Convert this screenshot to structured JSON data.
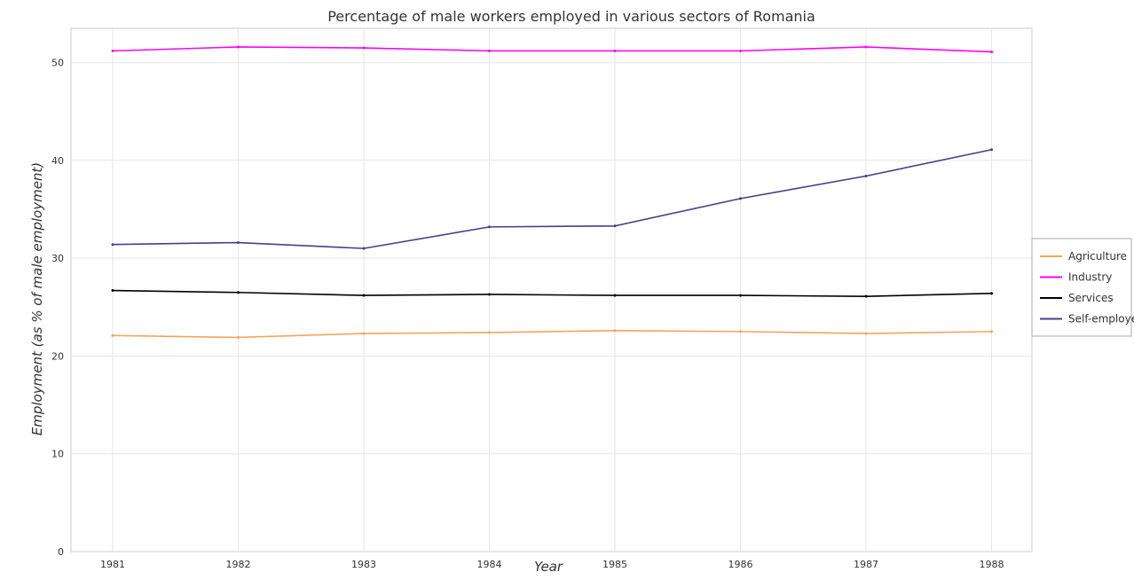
{
  "chart_data": {
    "type": "line",
    "title": "Percentage of male workers employed in various sectors of Romania",
    "xlabel": "Year",
    "ylabel": "Employment (as % of male employment)",
    "categories": [
      "1981",
      "1982",
      "1983",
      "1984",
      "1985",
      "1986",
      "1987",
      "1988"
    ],
    "ylim": [
      0,
      53.5
    ],
    "yticks": [
      "0",
      "10",
      "20",
      "30",
      "40",
      "50"
    ],
    "grid": true,
    "legend_position": "right",
    "series": [
      {
        "name": "Agriculture",
        "color": "#f4a460",
        "values": [
          22.1,
          21.9,
          22.3,
          22.4,
          22.6,
          22.5,
          22.3,
          22.5
        ]
      },
      {
        "name": "Industry",
        "color": "#ff00ff",
        "values": [
          51.2,
          51.6,
          51.5,
          51.2,
          51.2,
          51.2,
          51.6,
          51.1
        ]
      },
      {
        "name": "Services",
        "color": "#000000",
        "values": [
          26.7,
          26.5,
          26.2,
          26.3,
          26.2,
          26.2,
          26.1,
          26.4
        ]
      },
      {
        "name": "Self-employed",
        "color": "#483d8b",
        "values": [
          31.4,
          31.6,
          31.0,
          33.2,
          33.3,
          36.1,
          38.4,
          41.1
        ]
      }
    ]
  }
}
